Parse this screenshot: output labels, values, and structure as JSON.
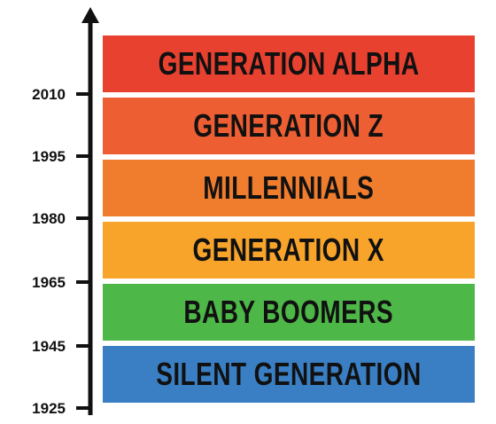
{
  "years": [
    "2010",
    "1995",
    "1980",
    "1965",
    "1945",
    "1925"
  ],
  "generations": [
    {
      "label": "GENERATION ALPHA",
      "color": "#e8412f"
    },
    {
      "label": "GENERATION Z",
      "color": "#ee5e33"
    },
    {
      "label": "MILLENNIALS",
      "color": "#f07c2e"
    },
    {
      "label": "GENERATION X",
      "color": "#f8a42b"
    },
    {
      "label": "BABY BOOMERS",
      "color": "#4db748"
    },
    {
      "label": "SILENT GENERATION",
      "color": "#3a7fc4"
    }
  ],
  "axis_color": "#111111"
}
